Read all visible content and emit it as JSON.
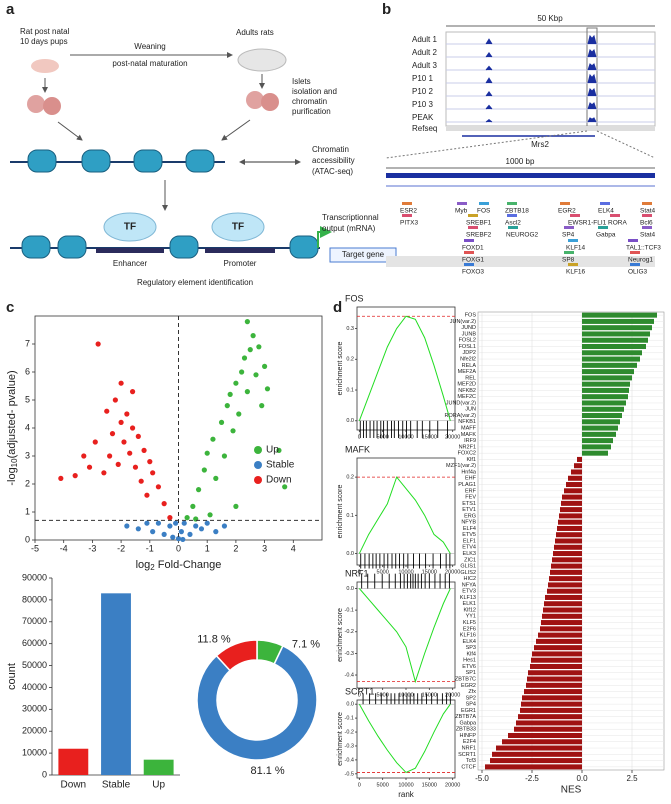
{
  "panel_a": {
    "label": "a",
    "pups": [
      "Rat post natal",
      "10 days pups"
    ],
    "adults": "Adults rats",
    "weaning": "Weaning",
    "maturation": "post-natal maturation",
    "islets": [
      "Islets",
      "isolation and",
      "chromatin",
      "purification"
    ],
    "accessibility": [
      "Chromatin",
      "accessibility",
      "(ATAC-seq)"
    ],
    "tf": [
      "TF",
      "TF"
    ],
    "enhancer": "Enhancer",
    "promoter": "Promoter",
    "output": [
      "Transcriptionnal",
      "output (mRNA)"
    ],
    "target": "Target gene",
    "footer": "Regulatory element identification"
  },
  "panel_b": {
    "label": "b",
    "scale": "50 Kbp",
    "tracks": [
      "Adult 1",
      "Adult 2",
      "Adult 3",
      "P10 1",
      "P10 2",
      "P10 3",
      "PEAK"
    ],
    "refseq": "Refseq",
    "gene": "Mrs2",
    "zoom_scale": "1000 bp",
    "motifs": [
      "ESR2",
      "PITX3",
      "Myb",
      "FOS",
      "ZBTB18",
      "SREBF1",
      "Ascl2",
      "SREBF2",
      "NEUROG2",
      "FOXD1",
      "FOXG1",
      "FOXO3",
      "EGR2",
      "EWSR1-FLI1",
      "SP4",
      "KLF14",
      "SP8",
      "KLF16",
      "ELK4",
      "RORA",
      "Gabpa",
      "TAL1::TCF3",
      "Neurog1",
      "OLIG3",
      "Stat4",
      "Bcl6",
      "Stat4"
    ]
  },
  "panel_c": {
    "label": "c"
  },
  "panel_d": {
    "label": "d"
  },
  "chart_data": [
    {
      "type": "scatter",
      "ylabel": [
        "-log",
        "10",
        "(adjusted- pvalue)"
      ],
      "xlabel": [
        "log",
        "2",
        " Fold-Change"
      ],
      "xlim": [
        -5,
        5
      ],
      "ylim": [
        0,
        8
      ],
      "xticks": [
        -5,
        -4,
        -3,
        -2,
        -1,
        0,
        1,
        2,
        3,
        4
      ],
      "yticks": [
        0,
        1,
        2,
        3,
        4,
        5,
        6,
        7
      ],
      "threshold_x": 0,
      "threshold_y": 0.7,
      "legend": "right",
      "series": [
        {
          "name": "Up",
          "color": "#3cb43c",
          "x": [
            0.3,
            0.5,
            0.7,
            0.9,
            1.0,
            1.2,
            1.3,
            1.5,
            1.6,
            1.7,
            1.8,
            1.9,
            2.0,
            2.1,
            2.2,
            2.3,
            2.4,
            2.5,
            2.6,
            2.7,
            2.8,
            2.9,
            3.0,
            3.1,
            2.4,
            1.1,
            0.6,
            3.5,
            3.7,
            2.0
          ],
          "values": [
            0.8,
            1.2,
            1.8,
            2.5,
            3.1,
            3.6,
            2.2,
            4.2,
            3.0,
            4.8,
            5.2,
            3.9,
            5.6,
            4.5,
            6.0,
            6.5,
            5.3,
            6.8,
            7.3,
            5.9,
            6.9,
            4.8,
            6.2,
            5.4,
            7.8,
            0.9,
            0.75,
            3.2,
            1.9,
            1.2
          ]
        },
        {
          "name": "Stable",
          "color": "#3b7fc4",
          "x": [
            -1.4,
            -1.1,
            -0.9,
            -0.7,
            -0.5,
            -0.3,
            -0.2,
            0,
            0.1,
            0.2,
            0.4,
            0.6,
            0.8,
            1.0,
            1.3,
            1.6,
            -1.8,
            0.15,
            -0.1
          ],
          "values": [
            0.4,
            0.6,
            0.3,
            0.6,
            0.2,
            0.5,
            0.1,
            0.05,
            0.3,
            0.6,
            0.2,
            0.5,
            0.4,
            0.6,
            0.3,
            0.5,
            0.5,
            0.02,
            0.6
          ]
        },
        {
          "name": "Down",
          "color": "#e8201e",
          "x": [
            -0.3,
            -0.5,
            -0.7,
            -0.9,
            -1.0,
            -1.1,
            -1.2,
            -1.3,
            -1.4,
            -1.5,
            -1.6,
            -1.7,
            -1.8,
            -1.9,
            -2.0,
            -2.1,
            -2.2,
            -2.3,
            -2.4,
            -2.5,
            -2.6,
            -2.8,
            -2.9,
            -3.1,
            -3.3,
            -3.6,
            -4.1,
            -1.6,
            -2.0
          ],
          "values": [
            0.8,
            1.3,
            1.9,
            2.4,
            2.8,
            1.6,
            3.2,
            2.1,
            3.7,
            2.6,
            4.0,
            3.1,
            4.5,
            3.5,
            4.2,
            2.7,
            5.0,
            3.8,
            3.0,
            4.6,
            2.4,
            7.0,
            3.5,
            2.6,
            3.0,
            2.3,
            2.2,
            5.3,
            5.6
          ]
        }
      ]
    },
    {
      "type": "bar",
      "ylabel": "count",
      "categories": [
        "Down",
        "Stable",
        "Up"
      ],
      "values": [
        12000,
        83000,
        7000
      ],
      "colors": [
        "#e8201e",
        "#3b7fc4",
        "#3cb43c"
      ],
      "ylim": [
        0,
        90000
      ],
      "yticks": [
        0,
        10000,
        20000,
        30000,
        40000,
        50000,
        60000,
        70000,
        80000,
        90000
      ]
    },
    {
      "type": "pie",
      "donut": true,
      "values": [
        7.1,
        81.1,
        11.8
      ],
      "value_labels": [
        "7.1 %",
        "81.1 %",
        "11.8 %"
      ],
      "colors": [
        "#3cb43c",
        "#3b7fc4",
        "#e8201e"
      ]
    },
    {
      "type": "line",
      "title": "FOS",
      "ylabel": "enrichment score",
      "x": [
        0,
        2000,
        4000,
        6000,
        8000,
        10000,
        12000,
        14000,
        16000,
        18000,
        19500
      ],
      "values": [
        0,
        0.08,
        0.16,
        0.24,
        0.3,
        0.34,
        0.33,
        0.27,
        0.18,
        0.08,
        0
      ],
      "peak": 0.34,
      "color": "#22dd22",
      "xlim": [
        -500,
        20500
      ],
      "ylim": [
        -0.03,
        0.37
      ],
      "xticks": [
        0,
        5000,
        10000,
        15000,
        20000
      ],
      "yticks": [
        {
          "value": 0,
          "label": "0.0"
        },
        0.1,
        0.2,
        0.3
      ],
      "hits": [
        200,
        900,
        1500,
        2300,
        3100,
        3800,
        4600,
        5200,
        6000,
        6900,
        7500,
        8400,
        9300,
        10100,
        11000,
        12400,
        13500,
        15100,
        16800,
        18900
      ]
    },
    {
      "type": "line",
      "title": "MAFK",
      "ylabel": "enrichment score",
      "x": [
        0,
        2000,
        4000,
        6000,
        8000,
        10000,
        12000,
        14000,
        16000,
        18000,
        19500
      ],
      "values": [
        0,
        0.05,
        0.09,
        0.13,
        0.2,
        0.17,
        0.14,
        0.1,
        0.05,
        0.03,
        0
      ],
      "peak": 0.2,
      "color": "#22dd22",
      "xlim": [
        -500,
        20500
      ],
      "ylim": [
        -0.03,
        0.25
      ],
      "xticks": [
        0,
        5000,
        10000,
        15000,
        20000
      ],
      "yticks": [
        {
          "value": 0,
          "label": "0.0"
        },
        0.1,
        0.2
      ],
      "hits": [
        300,
        1200,
        2100,
        2900,
        3600,
        4400,
        5300,
        6100,
        7000,
        7800,
        8600,
        9500,
        10400,
        11600,
        12900,
        14200,
        15800,
        17400,
        18600,
        19400
      ]
    },
    {
      "type": "line",
      "title": "NRF1",
      "ylabel": "enrichment score",
      "x": [
        0,
        2000,
        4000,
        6000,
        8000,
        10000,
        12000,
        14000,
        16000,
        18000,
        19500
      ],
      "values": [
        0,
        -0.05,
        -0.1,
        -0.15,
        -0.2,
        -0.27,
        -0.43,
        -0.3,
        -0.18,
        -0.07,
        0
      ],
      "peak": -0.43,
      "color": "#22dd22",
      "xlim": [
        -500,
        20500
      ],
      "ylim": [
        -0.46,
        0.03
      ],
      "xticks": [
        0,
        5000,
        10000,
        15000,
        20000
      ],
      "yticks": [
        {
          "value": 0,
          "label": "0.0"
        },
        -0.1,
        -0.2,
        -0.3,
        -0.4
      ],
      "hits": [
        500,
        1800,
        3300,
        4900,
        6400,
        7700,
        8800,
        9600,
        10300,
        11000,
        11500,
        12000,
        12600,
        13300,
        14100,
        15000,
        16200,
        17300,
        18400,
        19300
      ]
    },
    {
      "type": "line",
      "title": "SCRT1",
      "ylabel": "enrichment score",
      "xlabel": "rank",
      "x": [
        0,
        2000,
        4000,
        6000,
        8000,
        10000,
        12000,
        14000,
        16000,
        18000,
        19500
      ],
      "values": [
        0,
        -0.12,
        -0.23,
        -0.33,
        -0.42,
        -0.49,
        -0.46,
        -0.34,
        -0.2,
        -0.07,
        0
      ],
      "peak": -0.49,
      "color": "#22dd22",
      "xlim": [
        -500,
        20500
      ],
      "ylim": [
        -0.53,
        0.03
      ],
      "xticks": [
        0,
        5000,
        10000,
        15000,
        20000
      ],
      "yticks": [
        {
          "value": 0,
          "label": "0.0"
        },
        -0.1,
        -0.2,
        -0.3,
        -0.4,
        -0.5
      ],
      "hits": [
        800,
        2200,
        3500,
        4700,
        5900,
        6800,
        7600,
        8500,
        9400,
        10200,
        10900,
        11700,
        12500,
        13400,
        14400,
        15500,
        16700,
        17800,
        18700,
        19500
      ]
    },
    {
      "type": "hbar",
      "xlabel": "NES",
      "pos_color": "#2e8b2e",
      "neg_color": "#a01212",
      "grid": true,
      "xlim": [
        -5.2,
        4.1
      ],
      "xticks": [
        {
          "value": -5,
          "label": "-5.0"
        },
        -2.5,
        {
          "value": 0,
          "label": "0.0"
        },
        2.5
      ],
      "categories": [
        "FOS",
        "JUN(var.2)",
        "JUND",
        "JUNB",
        "FOSL2",
        "FOSL1",
        "JDP2",
        "Nfe2l2",
        "RELA",
        "MEF2A",
        "REL",
        "MEF2D",
        "NFKB2",
        "MEF2C",
        "JUND(var.2)",
        "JUN",
        "RORA(var.2)",
        "NFKB1",
        "MAFF",
        "MAFK",
        "IRF9",
        "NR2F1",
        "FOXC2",
        "Klf1",
        "MZF1(var.2)",
        "Hnf4a",
        "EHF",
        "PLAG1",
        "ERF",
        "FEV",
        "ETS1",
        "ETV1",
        "ERG",
        "NFYB",
        "ELF4",
        "ETV5",
        "ELF1",
        "ETV4",
        "ELK3",
        "ZIC1",
        "GLIS1",
        "GLIS2",
        "HIC2",
        "NFYA",
        "ETV3",
        "KLF13",
        "ELK1",
        "Klf12",
        "YY1",
        "KLF5",
        "E2F6",
        "KLF16",
        "ELK4",
        "SP3",
        "Klf4",
        "Hes1",
        "ETV6",
        "SP1",
        "ZBTB7C",
        "EGR2",
        "Zfx",
        "SP2",
        "SP4",
        "EGR1",
        "ZBTB7A",
        "Gabpa",
        "ZBTB33",
        "HINFP",
        "E2F4",
        "NRF1",
        "SCRT1",
        "Tcf3",
        "CTCF"
      ],
      "values": [
        3.75,
        3.6,
        3.5,
        3.4,
        3.3,
        3.2,
        3.0,
        2.9,
        2.75,
        2.6,
        2.5,
        2.4,
        2.35,
        2.3,
        2.2,
        2.1,
        2.0,
        1.9,
        1.8,
        1.7,
        1.55,
        1.45,
        1.3,
        -0.25,
        -0.4,
        -0.55,
        -0.7,
        -0.8,
        -0.9,
        -1.0,
        -1.05,
        -1.1,
        -1.15,
        -1.2,
        -1.25,
        -1.3,
        -1.35,
        -1.4,
        -1.45,
        -1.5,
        -1.55,
        -1.6,
        -1.65,
        -1.7,
        -1.75,
        -1.85,
        -1.9,
        -1.95,
        -2.0,
        -2.05,
        -2.1,
        -2.2,
        -2.3,
        -2.4,
        -2.5,
        -2.55,
        -2.6,
        -2.7,
        -2.75,
        -2.8,
        -2.9,
        -3.0,
        -3.05,
        -3.1,
        -3.2,
        -3.3,
        -3.4,
        -3.7,
        -4.0,
        -4.3,
        -4.5,
        -4.6,
        -4.85
      ]
    }
  ]
}
